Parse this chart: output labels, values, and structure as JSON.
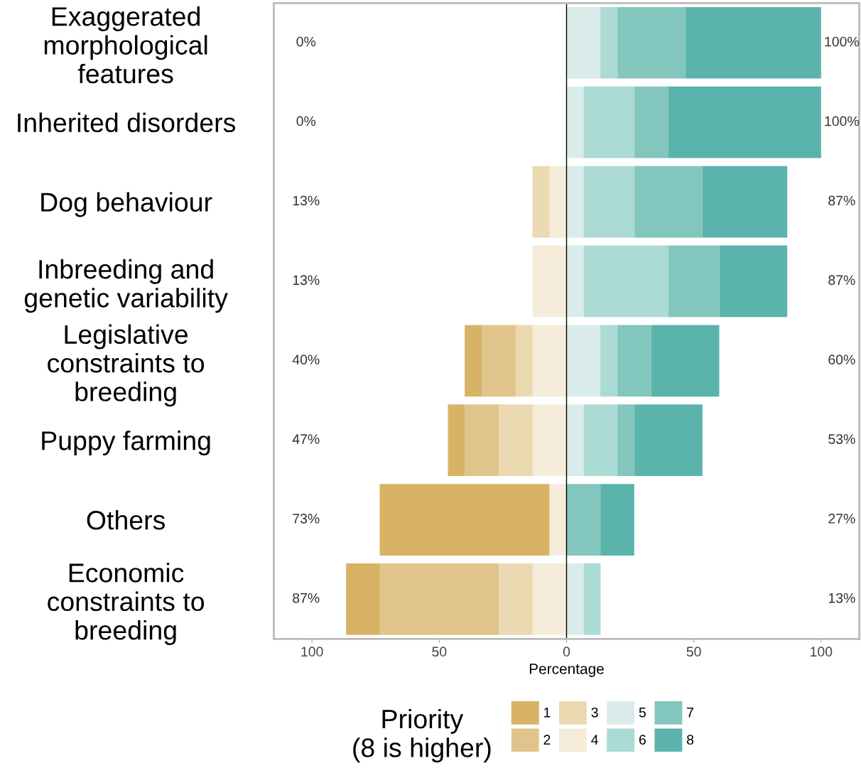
{
  "chart_data": {
    "type": "bar",
    "orientation": "horizontal",
    "stacked": true,
    "categories": [
      "Exaggerated\nmorphological\nfeatures",
      "Inherited disorders",
      "Dog behaviour",
      "Inbreeding and\ngenetic variability",
      "Legislative\nconstraints to\nbreeding",
      "Puppy farming",
      "Others",
      "Economic\nconstraints to\nbreeding"
    ],
    "series": [
      {
        "name": "4",
        "color": "#f5ecd9",
        "values": [
          null,
          null,
          -6.7,
          -13.3,
          -13.3,
          -13.3,
          -6.7,
          -13.3
        ]
      },
      {
        "name": "3",
        "color": "#ebd9b2",
        "values": [
          null,
          null,
          -6.7,
          null,
          -6.7,
          -13.3,
          null,
          -13.3
        ]
      },
      {
        "name": "2",
        "color": "#e1c48c",
        "values": [
          null,
          null,
          null,
          null,
          -13.3,
          -13.3,
          null,
          -46.7
        ]
      },
      {
        "name": "1",
        "color": "#d8b365",
        "values": [
          null,
          null,
          null,
          null,
          -6.7,
          -6.7,
          -66.7,
          -13.3
        ]
      },
      {
        "name": "5",
        "color": "#d9ecea",
        "values": [
          13.3,
          6.7,
          6.7,
          6.7,
          13.3,
          6.7,
          null,
          6.7
        ]
      },
      {
        "name": "6",
        "color": "#acdad5",
        "values": [
          6.7,
          20,
          20,
          33.3,
          6.7,
          13.3,
          null,
          6.7
        ]
      },
      {
        "name": "7",
        "color": "#83c6bd",
        "values": [
          26.7,
          13.3,
          26.7,
          20,
          13.3,
          6.7,
          13.3,
          null
        ]
      },
      {
        "name": "8",
        "color": "#5ab4ac",
        "values": [
          53.3,
          60,
          33.3,
          26.7,
          26.7,
          26.7,
          13.3,
          null
        ]
      }
    ],
    "xlim": [
      -115,
      115
    ],
    "xticks": [
      {
        "value": -100,
        "label": "100"
      },
      {
        "value": -50,
        "label": "50"
      },
      0,
      50,
      100
    ],
    "xlabel": "Percentage",
    "legend_title": "Priority\n(8 is higher)",
    "legend": "bottom",
    "grid": false,
    "ref_lines": [
      {
        "axis": "x",
        "value": 0,
        "color": "#000000"
      }
    ],
    "annotations": [
      "0%",
      "100%",
      "0%",
      "100%",
      "13%",
      "87%",
      "13%",
      "87%",
      "40%",
      "60%",
      "47%",
      "53%",
      "73%",
      "27%",
      "87%",
      "13%"
    ]
  }
}
